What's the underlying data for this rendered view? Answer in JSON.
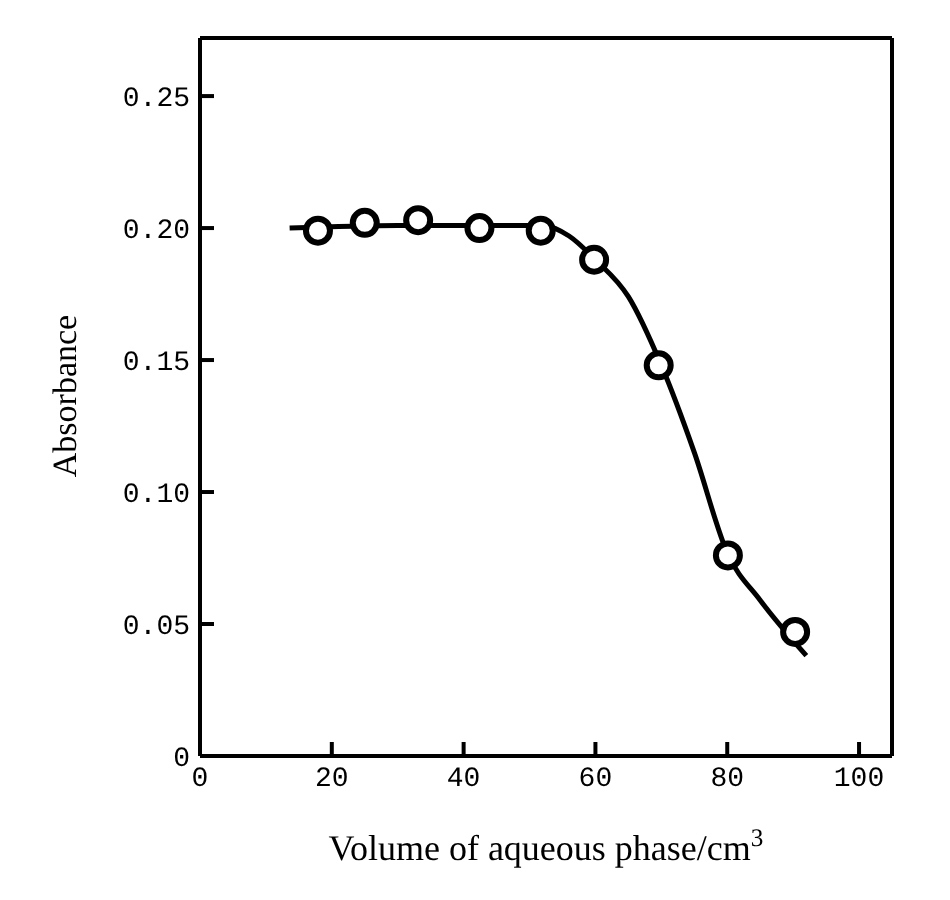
{
  "chart_data": {
    "type": "scatter",
    "xlabel": "Volume of aqueous phase/cm$^{3}$",
    "ylabel": "Absorbance",
    "xlim": [
      0,
      105
    ],
    "xticks": [
      0,
      20,
      40,
      60,
      80,
      100
    ],
    "ylim": [
      0,
      0.272
    ],
    "yticks": [
      0,
      0.05,
      {
        "value": 0.1,
        "label": "0.10"
      },
      0.15,
      {
        "value": 0.2,
        "label": "0.20"
      },
      0.25
    ],
    "legend": false,
    "series": [
      {
        "marker": "circle",
        "color": "#000000",
        "x": [
          17.9,
          25,
          33.1,
          42.4,
          51.7,
          59.8,
          69.6,
          80.1,
          90.3
        ],
        "values": [
          0.199,
          0.202,
          0.203,
          0.2,
          0.199,
          0.188,
          0.148,
          0.076,
          0.047
        ]
      },
      {
        "type": "line",
        "marker": "none",
        "line_style": "solid",
        "color": "#000000",
        "x": [
          13.6,
          30,
          52,
          56,
          60,
          65,
          70,
          75,
          80,
          85,
          92
        ],
        "values": [
          0.2,
          0.201,
          0.201,
          0.197,
          0.188,
          0.174,
          0.148,
          0.115,
          0.077,
          0.059,
          0.038
        ]
      }
    ]
  }
}
